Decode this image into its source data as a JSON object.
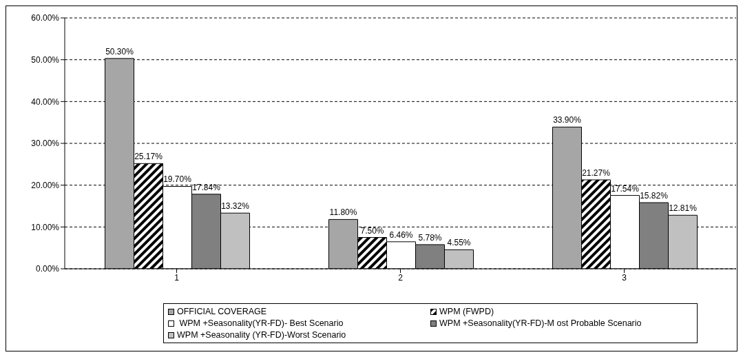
{
  "chart_data": {
    "type": "bar",
    "categories": [
      "1",
      "2",
      "3"
    ],
    "series": [
      {
        "name": "OFFICIAL COVERAGE",
        "color": "#a6a6a6",
        "values": [
          50.3,
          11.8,
          33.9
        ],
        "value_labels": [
          "50.30%",
          "11.80%",
          "33.90%"
        ]
      },
      {
        "name": "WPM (FWPD)",
        "color": "#000000",
        "values": [
          25.17,
          7.5,
          21.27
        ],
        "value_labels": [
          "25.17%",
          "7.50%",
          "21.27%"
        ]
      },
      {
        "name": " WPM +Seasonality(YR-FD)- Best Scenario",
        "color": "#ffffff",
        "values": [
          19.7,
          6.46,
          17.54
        ],
        "value_labels": [
          "19.70%",
          "6.46%",
          "17.54%"
        ]
      },
      {
        "name": "WPM +Seasonality(YR-FD)-M ost Probable Scenario",
        "color": "#808080",
        "values": [
          17.84,
          5.78,
          15.82
        ],
        "value_labels": [
          "17.84%",
          "5.78%",
          "15.82%"
        ]
      },
      {
        "name": "WPM +Seasonality (YR-FD)-Worst Scenario",
        "color": "#c0c0c0",
        "values": [
          13.32,
          4.55,
          12.81
        ],
        "value_labels": [
          "13.32%",
          "4.55%",
          "12.81%"
        ]
      }
    ],
    "ylim": [
      0,
      60
    ],
    "yticks": [
      {
        "value": 0,
        "label": "0.00%"
      },
      {
        "value": 10,
        "label": "10.00%"
      },
      {
        "value": 20,
        "label": "20.00%"
      },
      {
        "value": 30,
        "label": "30.00%"
      },
      {
        "value": 40,
        "label": "40.00%"
      },
      {
        "value": 50,
        "label": "50.00%"
      },
      {
        "value": 60,
        "label": "60.00%"
      }
    ],
    "grid": "y",
    "legend": "bottom"
  }
}
